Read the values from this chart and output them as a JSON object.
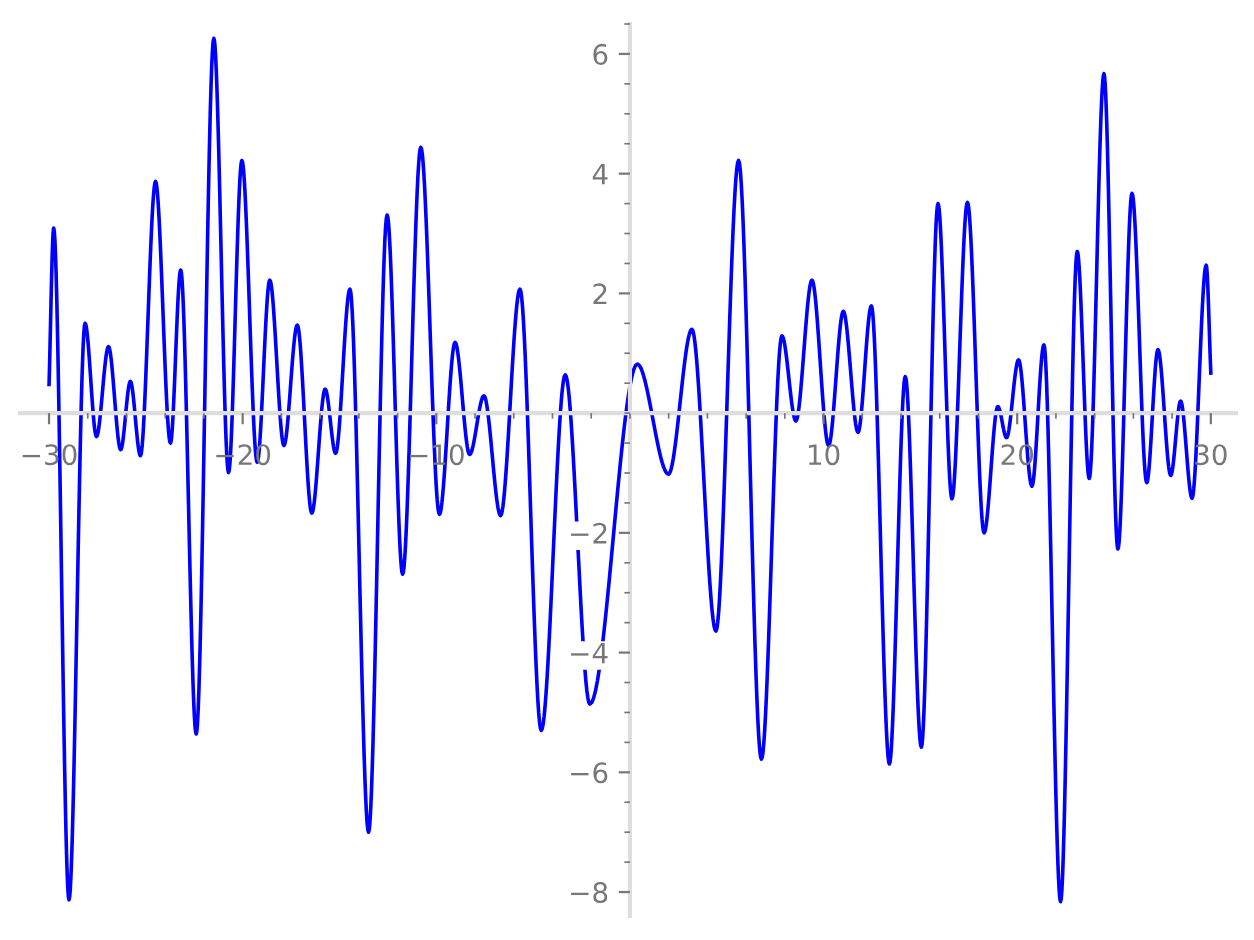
{
  "chart_data": {
    "type": "line",
    "x": [
      -30,
      -29.76,
      -28.97,
      -28.14,
      -27.55,
      -26.93,
      -26.3,
      -25.8,
      -25.28,
      -24.5,
      -23.73,
      -23.2,
      -22.4,
      -21.49,
      -20.73,
      -20.04,
      -19.25,
      -18.6,
      -17.87,
      -17.18,
      -16.43,
      -15.74,
      -15.2,
      -14.46,
      -13.5,
      -12.54,
      -11.74,
      -10.8,
      -9.84,
      -9.03,
      -8.28,
      -7.54,
      -6.68,
      -5.68,
      -4.58,
      -3.34,
      -2.07,
      0.38,
      1.99,
      3.2,
      4.44,
      5.61,
      6.79,
      7.85,
      8.57,
      9.4,
      10.26,
      11.02,
      11.78,
      12.47,
      13.4,
      14.22,
      15.05,
      15.91,
      16.63,
      17.43,
      18.29,
      19.0,
      19.45,
      20.07,
      20.76,
      21.38,
      22.24,
      23.1,
      23.72,
      24.48,
      25.2,
      25.93,
      26.69,
      27.27,
      27.93,
      28.44,
      29.03,
      29.76,
      30
    ],
    "series": [
      {
        "color": "#0000ff",
        "values": [
          0.48,
          3.09,
          -8.13,
          1.5,
          -0.39,
          1.11,
          -0.61,
          0.53,
          -0.71,
          3.87,
          -0.5,
          2.39,
          -5.36,
          6.26,
          -0.99,
          4.22,
          -0.82,
          2.22,
          -0.54,
          1.47,
          -1.67,
          0.4,
          -0.67,
          2.07,
          -7.0,
          3.31,
          -2.69,
          4.44,
          -1.69,
          1.18,
          -0.69,
          0.29,
          -1.71,
          2.07,
          -5.3,
          0.64,
          -4.86,
          0.82,
          -1.02,
          1.4,
          -3.64,
          4.22,
          -5.78,
          1.29,
          -0.13,
          2.22,
          -0.54,
          1.7,
          -0.32,
          1.79,
          -5.86,
          0.61,
          -5.58,
          3.5,
          -1.43,
          3.52,
          -2.0,
          0.11,
          -0.41,
          0.89,
          -1.22,
          1.14,
          -8.16,
          2.7,
          -1.09,
          5.67,
          -2.27,
          3.67,
          -1.16,
          1.06,
          -1.04,
          0.2,
          -1.42,
          2.47,
          0.67
        ]
      }
    ],
    "xlim": [
      -31.5,
      31.3
    ],
    "ylim": [
      -8.4,
      6.5
    ],
    "xticks": [
      {
        "value": -30,
        "label": "−30"
      },
      {
        "value": -20,
        "label": "−20"
      },
      {
        "value": -10,
        "label": "−10"
      },
      10,
      20,
      30
    ],
    "yticks": [
      {
        "value": -8,
        "label": "−8"
      },
      {
        "value": -6,
        "label": "−6"
      },
      {
        "value": -4,
        "label": "−4"
      },
      {
        "value": -2,
        "label": "−2"
      },
      2,
      4,
      6
    ],
    "grid": false,
    "marker": "none",
    "line_style": "solid"
  }
}
